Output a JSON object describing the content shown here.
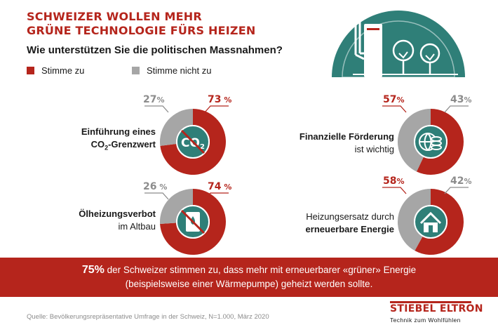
{
  "header": {
    "title_line1": "SCHWEIZER WOLLEN MEHR",
    "title_line2": "GRÜNE TECHNOLOGIE FÜRS HEIZEN",
    "subtitle": "Wie unterstützen Sie die politischen Massnahmen?"
  },
  "legend": {
    "agree": "Stimme zu",
    "disagree": "Stimme nicht zu"
  },
  "colors": {
    "agree": "#b5251c",
    "disagree": "#a6a6a6",
    "icon_bg": "#2f7f78",
    "banner": "#b5251c"
  },
  "chart_data": [
    {
      "type": "pie",
      "title": "Einführung eines CO₂-Grenzwert",
      "labels": [
        "Stimme zu",
        "Stimme nicht zu"
      ],
      "values": [
        73,
        27
      ],
      "icon": "co2-crossed-icon"
    },
    {
      "type": "pie",
      "title": "Ölheizungsverbot im Altbau",
      "labels": [
        "Stimme zu",
        "Stimme nicht zu"
      ],
      "values": [
        74,
        26
      ],
      "icon": "oil-barrel-crossed-icon"
    },
    {
      "type": "pie",
      "title": "Finanzielle Förderung ist wichtig",
      "labels": [
        "Stimme zu",
        "Stimme nicht zu"
      ],
      "values": [
        57,
        43
      ],
      "icon": "globe-coins-icon"
    },
    {
      "type": "pie",
      "title": "Heizungsersatz durch erneuerbare Energie",
      "labels": [
        "Stimme zu",
        "Stimme nicht zu"
      ],
      "values": [
        58,
        42
      ],
      "icon": "house-icon"
    }
  ],
  "items": {
    "co2": {
      "label_l1": "Einführung eines",
      "label_l2a": "CO",
      "label_l2sub": "2",
      "label_l2b": "-Grenzwert",
      "agree_pct": "73",
      "agree_sym": " %",
      "dis_pct": "27",
      "dis_sym": "%",
      "icon_text": "CO",
      "icon_sub": "2"
    },
    "oil": {
      "label_l1": "Ölheizungsverbot",
      "label_l2": "im Altbau",
      "agree_pct": "74",
      "agree_sym": " %",
      "dis_pct": "26",
      "dis_sym": " %"
    },
    "fin": {
      "label_l1": "Finanzielle Förderung",
      "label_l2": "ist wichtig",
      "agree_pct": "57",
      "agree_sym": "%",
      "dis_pct": "43",
      "dis_sym": "%"
    },
    "heat": {
      "label_l1": "Heizungsersatz durch",
      "label_l2": "erneuerbare Energie",
      "agree_pct": "58",
      "agree_sym": "%",
      "dis_pct": "42",
      "dis_sym": "%"
    }
  },
  "banner": {
    "big": "75%",
    "line1_rest": " der Schweizer stimmen zu, dass mehr mit erneuerbarer «grüner» Energie",
    "line2": "(beispielsweise einer Wärmepumpe) geheizt werden sollte."
  },
  "footer": {
    "source": "Quelle: Bevölkerungsrepräsentative Umfrage in der Schweiz, N=1.000, März 2020",
    "brand": "STIEBEL ELTRON",
    "tagline": "Technik zum Wohlfühlen"
  }
}
